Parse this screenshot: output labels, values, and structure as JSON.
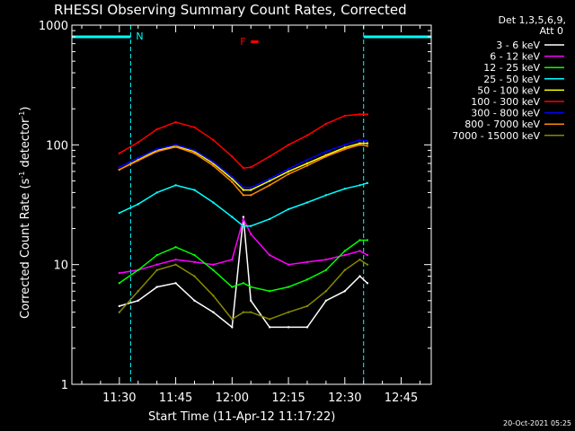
{
  "chart_data": {
    "type": "line",
    "title": "RHESSI Observing Summary Count Rates, Corrected",
    "xlabel": "Start Time (11-Apr-12 11:17:22)",
    "ylabel_main": "Corrected Count Rate (s",
    "ylabel_sup1": "-1",
    "ylabel_mid": " detector",
    "ylabel_sup2": "-1",
    "ylabel_end": ")",
    "yscale": "log",
    "ylim": [
      1,
      1000
    ],
    "xlim": [
      "11:17:22",
      "12:53:00"
    ],
    "x_tick_labels": [
      "11:30",
      "11:45",
      "12:00",
      "12:15",
      "12:30",
      "12:45"
    ],
    "y_tick_labels": [
      "1",
      "10",
      "100",
      "1000"
    ],
    "legend_position": "top-right",
    "legend_header": "Det 1,3,5,6,9,",
    "legend_header2": "Att 0",
    "series": [
      {
        "name": "3 - 6 keV",
        "color": "#ffffff",
        "x": [
          "11:30",
          "11:35",
          "11:40",
          "11:45",
          "11:50",
          "11:55",
          "12:00",
          "12:03",
          "12:05",
          "12:10",
          "12:15",
          "12:20",
          "12:25",
          "12:30",
          "12:34",
          "12:36"
        ],
        "y": [
          4.5,
          5,
          6.5,
          7,
          5,
          4,
          3,
          25,
          5,
          3,
          3,
          3,
          5,
          6,
          8,
          7
        ]
      },
      {
        "name": "6 - 12 keV",
        "color": "#ff00ff",
        "x": [
          "11:30",
          "11:35",
          "11:40",
          "11:45",
          "11:50",
          "11:55",
          "12:00",
          "12:03",
          "12:05",
          "12:10",
          "12:15",
          "12:20",
          "12:25",
          "12:30",
          "12:34",
          "12:36"
        ],
        "y": [
          8.5,
          9,
          10,
          11,
          10.5,
          10,
          11,
          24,
          18,
          12,
          10,
          10.5,
          11,
          12,
          13,
          12
        ]
      },
      {
        "name": "12 - 25 keV",
        "color": "#00ff00",
        "x": [
          "11:30",
          "11:35",
          "11:40",
          "11:45",
          "11:50",
          "11:55",
          "12:00",
          "12:03",
          "12:05",
          "12:10",
          "12:15",
          "12:20",
          "12:25",
          "12:30",
          "12:34",
          "12:36"
        ],
        "y": [
          7,
          9,
          12,
          14,
          12,
          9,
          6.5,
          7,
          6.5,
          6,
          6.5,
          7.5,
          9,
          13,
          16,
          16
        ]
      },
      {
        "name": "25 - 50 keV",
        "color": "#00ffff",
        "x": [
          "11:30",
          "11:35",
          "11:40",
          "11:45",
          "11:50",
          "11:55",
          "12:00",
          "12:03",
          "12:05",
          "12:10",
          "12:15",
          "12:20",
          "12:25",
          "12:30",
          "12:34",
          "12:36"
        ],
        "y": [
          27,
          32,
          40,
          46,
          42,
          33,
          25,
          21,
          21,
          24,
          29,
          33,
          38,
          43,
          46,
          48
        ]
      },
      {
        "name": "50 - 100 keV",
        "color": "#ffff00",
        "x": [
          "11:30",
          "11:35",
          "11:40",
          "11:45",
          "11:50",
          "11:55",
          "12:00",
          "12:03",
          "12:05",
          "12:10",
          "12:15",
          "12:20",
          "12:25",
          "12:30",
          "12:34",
          "12:36"
        ],
        "y": [
          62,
          75,
          90,
          98,
          88,
          70,
          52,
          42,
          42,
          50,
          60,
          70,
          82,
          95,
          103,
          103
        ]
      },
      {
        "name": "100 - 300 keV",
        "color": "#ff0000",
        "x": [
          "11:30",
          "11:35",
          "11:40",
          "11:45",
          "11:50",
          "11:55",
          "12:00",
          "12:03",
          "12:05",
          "12:10",
          "12:15",
          "12:20",
          "12:25",
          "12:30",
          "12:34",
          "12:36"
        ],
        "y": [
          85,
          105,
          135,
          155,
          140,
          110,
          80,
          64,
          65,
          80,
          100,
          120,
          150,
          175,
          180,
          180
        ]
      },
      {
        "name": "300 - 800 keV",
        "color": "#0000ff",
        "x": [
          "11:30",
          "11:35",
          "11:40",
          "11:45",
          "11:50",
          "11:55",
          "12:00",
          "12:03",
          "12:05",
          "12:10",
          "12:15",
          "12:20",
          "12:25",
          "12:30",
          "12:34",
          "12:36"
        ],
        "y": [
          65,
          78,
          92,
          100,
          90,
          72,
          54,
          44,
          44,
          52,
          63,
          75,
          88,
          100,
          110,
          108
        ]
      },
      {
        "name": "800 - 7000 keV",
        "color": "#ff8800",
        "x": [
          "11:30",
          "11:35",
          "11:40",
          "11:45",
          "11:50",
          "11:55",
          "12:00",
          "12:03",
          "12:05",
          "12:10",
          "12:15",
          "12:20",
          "12:25",
          "12:30",
          "12:34",
          "12:36"
        ],
        "y": [
          62,
          74,
          88,
          96,
          85,
          67,
          49,
          38,
          38,
          46,
          57,
          67,
          80,
          92,
          100,
          98
        ]
      },
      {
        "name": "7000 - 15000 keV",
        "color": "#888800",
        "x": [
          "11:30",
          "11:35",
          "11:40",
          "11:45",
          "11:50",
          "11:55",
          "12:00",
          "12:03",
          "12:05",
          "12:10",
          "12:15",
          "12:20",
          "12:25",
          "12:30",
          "12:34",
          "12:36"
        ],
        "y": [
          4,
          6,
          9,
          10,
          8,
          5.5,
          3.5,
          4,
          4,
          3.5,
          4,
          4.5,
          6,
          9,
          11,
          10
        ]
      }
    ],
    "annotations": {
      "night_label": "N",
      "flare_label": "F",
      "night_intervals": [
        [
          "11:17:22",
          "11:33:00"
        ],
        [
          "12:35:00",
          "12:53:00"
        ]
      ],
      "flare_interval": [
        "12:05:00",
        "12:07:00"
      ],
      "night_color": "#00ffff",
      "flare_color": "#ff0000"
    }
  },
  "footer": {
    "timestamp": "20-Oct-2021 05:25"
  }
}
